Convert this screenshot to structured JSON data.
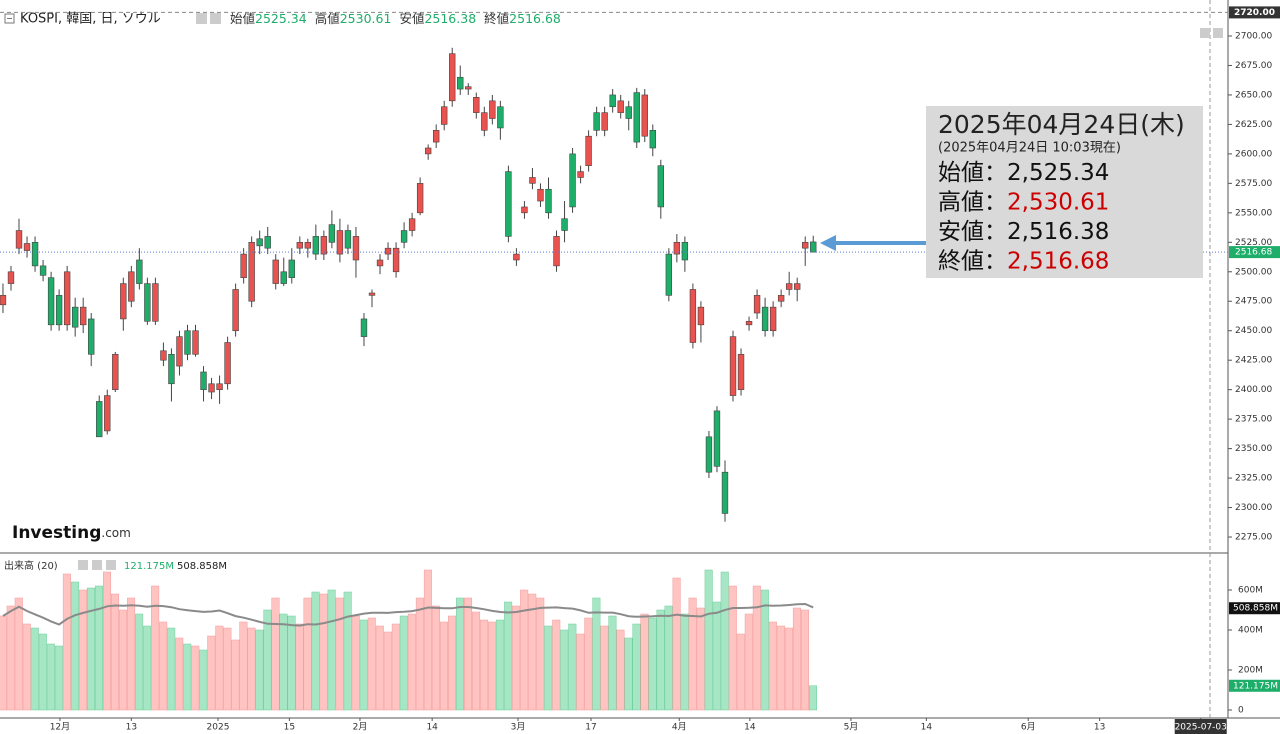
{
  "header": {
    "symbol": "KOSPI, 韓国, 日, ソウル",
    "fields": [
      {
        "label": "始値",
        "value": 2525.34
      },
      {
        "label": "高値",
        "value": 2530.61
      },
      {
        "label": "安値",
        "value": 2516.38
      },
      {
        "label": "終値",
        "value": 2516.68
      }
    ]
  },
  "logo": {
    "name": "Investing",
    "suffix": ".com"
  },
  "info_box": {
    "date": "2025年04月24日(木)",
    "asof": "(2025年04月24日 10:03現在)",
    "rows": [
      {
        "label": "始値：",
        "value": "2,525.34",
        "color": "#111111"
      },
      {
        "label": "高値：",
        "value": "2,530.61",
        "color": "#cc0000"
      },
      {
        "label": "安値：",
        "value": "2,516.38",
        "color": "#111111"
      },
      {
        "label": "終値：",
        "value": "2,516.68",
        "color": "#cc0000"
      }
    ]
  },
  "chart_data": {
    "type": "candlestick",
    "up_color": "#e8524f",
    "down_color": "#1fad6a",
    "xlim": [
      -0.37,
      152.7
    ],
    "xticks": [
      {
        "value": 7.1,
        "label": "12月"
      },
      {
        "value": 16,
        "label": "13"
      },
      {
        "value": 26.8,
        "label": "2025"
      },
      {
        "value": 35.7,
        "label": "15"
      },
      {
        "value": 44.5,
        "label": "2月"
      },
      {
        "value": 53.5,
        "label": "14"
      },
      {
        "value": 64.2,
        "label": "3月"
      },
      {
        "value": 73.3,
        "label": "17"
      },
      {
        "value": 84.3,
        "label": "4月"
      },
      {
        "value": 93.1,
        "label": "14"
      },
      {
        "value": 105.7,
        "label": "5月"
      },
      {
        "value": 115.1,
        "label": "14"
      },
      {
        "value": 127.8,
        "label": "6月"
      },
      {
        "value": 136.7,
        "label": "13"
      },
      {
        "value": 149.3,
        "label": "2025-07-03"
      }
    ],
    "ylim": [
      2262.3,
      2723.75
    ],
    "yticks": [
      {
        "value": 2275,
        "label": "2275.00"
      },
      {
        "value": 2300,
        "label": "2300.00"
      },
      {
        "value": 2325,
        "label": "2325.00"
      },
      {
        "value": 2350,
        "label": "2350.00"
      },
      {
        "value": 2375,
        "label": "2375.00"
      },
      {
        "value": 2400,
        "label": "2400.00"
      },
      {
        "value": 2425,
        "label": "2425.00"
      },
      {
        "value": 2450,
        "label": "2450.00"
      },
      {
        "value": 2475,
        "label": "2475.00"
      },
      {
        "value": 2500,
        "label": "2500.00"
      },
      {
        "value": 2525,
        "label": "2525.00"
      },
      {
        "value": 2550,
        "label": "2550.00"
      },
      {
        "value": 2575,
        "label": "2575.00"
      },
      {
        "value": 2600,
        "label": "2600.00"
      },
      {
        "value": 2625,
        "label": "2625.00"
      },
      {
        "value": 2650,
        "label": "2650.00"
      },
      {
        "value": 2675,
        "label": "2675.00"
      },
      {
        "value": 2700,
        "label": "2700.00"
      }
    ],
    "top_level": {
      "value": 2720,
      "label": "2720.00"
    },
    "last_price_label": "2516.68",
    "candles": [
      {
        "o": 2472,
        "h": 2490,
        "l": 2465,
        "c": 2480
      },
      {
        "o": 2490,
        "h": 2505,
        "l": 2484,
        "c": 2500
      },
      {
        "o": 2520,
        "h": 2545,
        "l": 2515,
        "c": 2535
      },
      {
        "o": 2518,
        "h": 2530,
        "l": 2512,
        "c": 2524
      },
      {
        "o": 2525,
        "h": 2530,
        "l": 2500,
        "c": 2505
      },
      {
        "o": 2505,
        "h": 2510,
        "l": 2492,
        "c": 2497
      },
      {
        "o": 2495,
        "h": 2500,
        "l": 2450,
        "c": 2455
      },
      {
        "o": 2480,
        "h": 2485,
        "l": 2450,
        "c": 2455
      },
      {
        "o": 2455,
        "h": 2505,
        "l": 2450,
        "c": 2500
      },
      {
        "o": 2470,
        "h": 2478,
        "l": 2445,
        "c": 2453
      },
      {
        "o": 2455,
        "h": 2478,
        "l": 2448,
        "c": 2470
      },
      {
        "o": 2460,
        "h": 2465,
        "l": 2420,
        "c": 2430
      },
      {
        "o": 2390,
        "h": 2395,
        "l": 2360,
        "c": 2360
      },
      {
        "o": 2365,
        "h": 2400,
        "l": 2362,
        "c": 2395
      },
      {
        "o": 2400,
        "h": 2432,
        "l": 2398,
        "c": 2430
      },
      {
        "o": 2460,
        "h": 2495,
        "l": 2450,
        "c": 2490
      },
      {
        "o": 2475,
        "h": 2505,
        "l": 2470,
        "c": 2500
      },
      {
        "o": 2510,
        "h": 2520,
        "l": 2485,
        "c": 2490
      },
      {
        "o": 2490,
        "h": 2495,
        "l": 2455,
        "c": 2458
      },
      {
        "o": 2458,
        "h": 2495,
        "l": 2455,
        "c": 2490
      },
      {
        "o": 2425,
        "h": 2440,
        "l": 2420,
        "c": 2433
      },
      {
        "o": 2430,
        "h": 2435,
        "l": 2390,
        "c": 2405
      },
      {
        "o": 2420,
        "h": 2450,
        "l": 2412,
        "c": 2445
      },
      {
        "o": 2450,
        "h": 2455,
        "l": 2425,
        "c": 2430
      },
      {
        "o": 2430,
        "h": 2455,
        "l": 2428,
        "c": 2450
      },
      {
        "o": 2415,
        "h": 2420,
        "l": 2390,
        "c": 2400
      },
      {
        "o": 2398,
        "h": 2410,
        "l": 2392,
        "c": 2405
      },
      {
        "o": 2400,
        "h": 2412,
        "l": 2388,
        "c": 2405
      },
      {
        "o": 2405,
        "h": 2445,
        "l": 2400,
        "c": 2440
      },
      {
        "o": 2450,
        "h": 2490,
        "l": 2445,
        "c": 2485
      },
      {
        "o": 2495,
        "h": 2520,
        "l": 2490,
        "c": 2515
      },
      {
        "o": 2475,
        "h": 2530,
        "l": 2470,
        "c": 2525
      },
      {
        "o": 2528,
        "h": 2535,
        "l": 2515,
        "c": 2522
      },
      {
        "o": 2530,
        "h": 2538,
        "l": 2515,
        "c": 2520
      },
      {
        "o": 2490,
        "h": 2515,
        "l": 2485,
        "c": 2510
      },
      {
        "o": 2500,
        "h": 2512,
        "l": 2488,
        "c": 2490
      },
      {
        "o": 2510,
        "h": 2520,
        "l": 2490,
        "c": 2495
      },
      {
        "o": 2520,
        "h": 2530,
        "l": 2515,
        "c": 2525
      },
      {
        "o": 2520,
        "h": 2528,
        "l": 2512,
        "c": 2525
      },
      {
        "o": 2530,
        "h": 2540,
        "l": 2510,
        "c": 2515
      },
      {
        "o": 2515,
        "h": 2535,
        "l": 2510,
        "c": 2530
      },
      {
        "o": 2540,
        "h": 2552,
        "l": 2520,
        "c": 2525
      },
      {
        "o": 2515,
        "h": 2545,
        "l": 2508,
        "c": 2535
      },
      {
        "o": 2535,
        "h": 2540,
        "l": 2515,
        "c": 2520
      },
      {
        "o": 2510,
        "h": 2538,
        "l": 2495,
        "c": 2530
      },
      {
        "o": 2460,
        "h": 2465,
        "l": 2437,
        "c": 2445
      },
      {
        "o": 2480,
        "h": 2485,
        "l": 2470,
        "c": 2482
      },
      {
        "o": 2505,
        "h": 2515,
        "l": 2498,
        "c": 2510
      },
      {
        "o": 2515,
        "h": 2525,
        "l": 2510,
        "c": 2520
      },
      {
        "o": 2500,
        "h": 2525,
        "l": 2495,
        "c": 2520
      },
      {
        "o": 2535,
        "h": 2542,
        "l": 2520,
        "c": 2525
      },
      {
        "o": 2535,
        "h": 2550,
        "l": 2530,
        "c": 2545
      },
      {
        "o": 2550,
        "h": 2580,
        "l": 2548,
        "c": 2575
      },
      {
        "o": 2600,
        "h": 2608,
        "l": 2595,
        "c": 2605
      },
      {
        "o": 2610,
        "h": 2625,
        "l": 2605,
        "c": 2620
      },
      {
        "o": 2625,
        "h": 2645,
        "l": 2620,
        "c": 2640
      },
      {
        "o": 2645,
        "h": 2690,
        "l": 2640,
        "c": 2685
      },
      {
        "o": 2665,
        "h": 2675,
        "l": 2650,
        "c": 2655
      },
      {
        "o": 2655,
        "h": 2660,
        "l": 2650,
        "c": 2657
      },
      {
        "o": 2635,
        "h": 2652,
        "l": 2630,
        "c": 2648
      },
      {
        "o": 2620,
        "h": 2640,
        "l": 2615,
        "c": 2635
      },
      {
        "o": 2630,
        "h": 2650,
        "l": 2625,
        "c": 2645
      },
      {
        "o": 2640,
        "h": 2645,
        "l": 2612,
        "c": 2622
      },
      {
        "o": 2585,
        "h": 2590,
        "l": 2525,
        "c": 2530
      },
      {
        "o": 2510,
        "h": 2520,
        "l": 2505,
        "c": 2515
      },
      {
        "o": 2550,
        "h": 2560,
        "l": 2545,
        "c": 2555
      },
      {
        "o": 2575,
        "h": 2588,
        "l": 2570,
        "c": 2580
      },
      {
        "o": 2560,
        "h": 2575,
        "l": 2555,
        "c": 2570
      },
      {
        "o": 2570,
        "h": 2580,
        "l": 2545,
        "c": 2550
      },
      {
        "o": 2505,
        "h": 2535,
        "l": 2500,
        "c": 2530
      },
      {
        "o": 2545,
        "h": 2560,
        "l": 2525,
        "c": 2535
      },
      {
        "o": 2600,
        "h": 2605,
        "l": 2550,
        "c": 2555
      },
      {
        "o": 2580,
        "h": 2590,
        "l": 2575,
        "c": 2585
      },
      {
        "o": 2590,
        "h": 2620,
        "l": 2585,
        "c": 2615
      },
      {
        "o": 2635,
        "h": 2640,
        "l": 2615,
        "c": 2620
      },
      {
        "o": 2620,
        "h": 2640,
        "l": 2615,
        "c": 2635
      },
      {
        "o": 2650,
        "h": 2655,
        "l": 2635,
        "c": 2640
      },
      {
        "o": 2635,
        "h": 2650,
        "l": 2630,
        "c": 2645
      },
      {
        "o": 2640,
        "h": 2645,
        "l": 2620,
        "c": 2630
      },
      {
        "o": 2652,
        "h": 2656,
        "l": 2605,
        "c": 2610
      },
      {
        "o": 2615,
        "h": 2655,
        "l": 2610,
        "c": 2650
      },
      {
        "o": 2620,
        "h": 2625,
        "l": 2598,
        "c": 2605
      },
      {
        "o": 2590,
        "h": 2595,
        "l": 2545,
        "c": 2555
      },
      {
        "o": 2515,
        "h": 2520,
        "l": 2475,
        "c": 2480
      },
      {
        "o": 2515,
        "h": 2532,
        "l": 2508,
        "c": 2525
      },
      {
        "o": 2525,
        "h": 2530,
        "l": 2500,
        "c": 2510
      },
      {
        "o": 2440,
        "h": 2490,
        "l": 2435,
        "c": 2485
      },
      {
        "o": 2455,
        "h": 2475,
        "l": 2440,
        "c": 2470
      },
      {
        "o": 2360,
        "h": 2365,
        "l": 2325,
        "c": 2330
      },
      {
        "o": 2382,
        "h": 2386,
        "l": 2330,
        "c": 2335
      },
      {
        "o": 2330,
        "h": 2340,
        "l": 2288,
        "c": 2295
      },
      {
        "o": 2395,
        "h": 2450,
        "l": 2390,
        "c": 2445
      },
      {
        "o": 2400,
        "h": 2435,
        "l": 2395,
        "c": 2430
      },
      {
        "o": 2455,
        "h": 2462,
        "l": 2450,
        "c": 2458
      },
      {
        "o": 2465,
        "h": 2485,
        "l": 2460,
        "c": 2480
      },
      {
        "o": 2470,
        "h": 2478,
        "l": 2445,
        "c": 2450
      },
      {
        "o": 2450,
        "h": 2475,
        "l": 2445,
        "c": 2470
      },
      {
        "o": 2475,
        "h": 2485,
        "l": 2470,
        "c": 2480
      },
      {
        "o": 2485,
        "h": 2500,
        "l": 2480,
        "c": 2490
      },
      {
        "o": 2485,
        "h": 2495,
        "l": 2475,
        "c": 2490
      },
      {
        "o": 2520,
        "h": 2530,
        "l": 2505,
        "c": 2525
      },
      {
        "o": 2525.34,
        "h": 2530.61,
        "l": 2516.38,
        "c": 2516.68
      }
    ],
    "volume": {
      "name": "出来高 (20)",
      "up_color": "#ffc4c2",
      "down_color": "#a6e6c4",
      "ma_color": "#8a8a8a",
      "ylim": [
        -40,
        785
      ],
      "yticks": [
        0,
        {
          "value": 200,
          "label": "200M"
        },
        {
          "value": 400,
          "label": "400M"
        },
        {
          "value": 600,
          "label": "600M"
        }
      ],
      "last_label": "121.175M",
      "ma": {
        "value": 508.858,
        "label": "508.858M"
      },
      "values": [
        470,
        520,
        560,
        430,
        410,
        380,
        330,
        320,
        680,
        640,
        600,
        610,
        620,
        690,
        580,
        500,
        560,
        480,
        420,
        620,
        440,
        410,
        360,
        330,
        320,
        300,
        370,
        420,
        410,
        350,
        440,
        410,
        400,
        500,
        560,
        480,
        470,
        430,
        560,
        590,
        580,
        600,
        560,
        590,
        470,
        450,
        460,
        420,
        390,
        430,
        470,
        480,
        560,
        700,
        520,
        440,
        470,
        560,
        560,
        490,
        450,
        440,
        450,
        540,
        520,
        600,
        580,
        560,
        420,
        450,
        400,
        430,
        380,
        460,
        560,
        420,
        470,
        400,
        360,
        430,
        480,
        460,
        500,
        520,
        660,
        480,
        560,
        510,
        700,
        540,
        690,
        620,
        380,
        480,
        620,
        600,
        440,
        420,
        410,
        510,
        500,
        121.175
      ]
    }
  }
}
